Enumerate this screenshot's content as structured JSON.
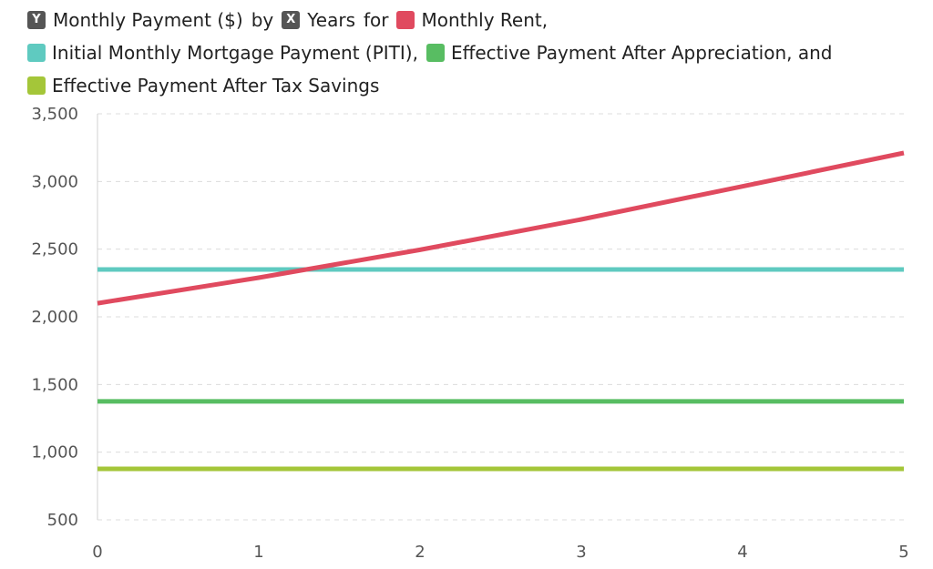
{
  "legend": {
    "y_badge": "Y",
    "y_label": "Monthly Payment ($)",
    "by_text": "by",
    "x_badge": "X",
    "x_label": "Years",
    "for_text": "for",
    "series_names": [
      "Monthly Rent,",
      "Initial Monthly Mortgage Payment (PITI),",
      "Effective Payment After Appreciation, and",
      "Effective Payment After Tax Savings"
    ]
  },
  "chart_data": {
    "type": "line",
    "x": [
      0,
      1,
      2,
      3,
      4,
      5
    ],
    "xlabel": "Years",
    "ylabel": "Monthly Payment ($)",
    "xlim": [
      0,
      5
    ],
    "ylim": [
      500,
      3500
    ],
    "x_ticks": [
      "0",
      "1",
      "2",
      "3",
      "4",
      "5"
    ],
    "y_ticks": [
      "500",
      "1,000",
      "1,500",
      "2,000",
      "2,500",
      "3,000",
      "3,500"
    ],
    "y_tick_values": [
      500,
      1000,
      1500,
      2000,
      2500,
      3000,
      3500
    ],
    "grid": "horizontal-dashed",
    "legend_position": "top",
    "series": [
      {
        "name": "Monthly Rent",
        "color": "#e04a5f",
        "values": [
          2100,
          2289,
          2495,
          2720,
          2964,
          3211
        ]
      },
      {
        "name": "Initial Monthly Mortgage Payment (PITI)",
        "color": "#5fcac0",
        "values": [
          2350,
          2350,
          2350,
          2350,
          2350,
          2350
        ]
      },
      {
        "name": "Effective Payment After Appreciation",
        "color": "#58bd62",
        "values": [
          1375,
          1375,
          1375,
          1375,
          1375,
          1375
        ]
      },
      {
        "name": "Effective Payment After Tax Savings",
        "color": "#a4c639",
        "values": [
          877,
          877,
          877,
          877,
          877,
          877
        ]
      }
    ]
  }
}
